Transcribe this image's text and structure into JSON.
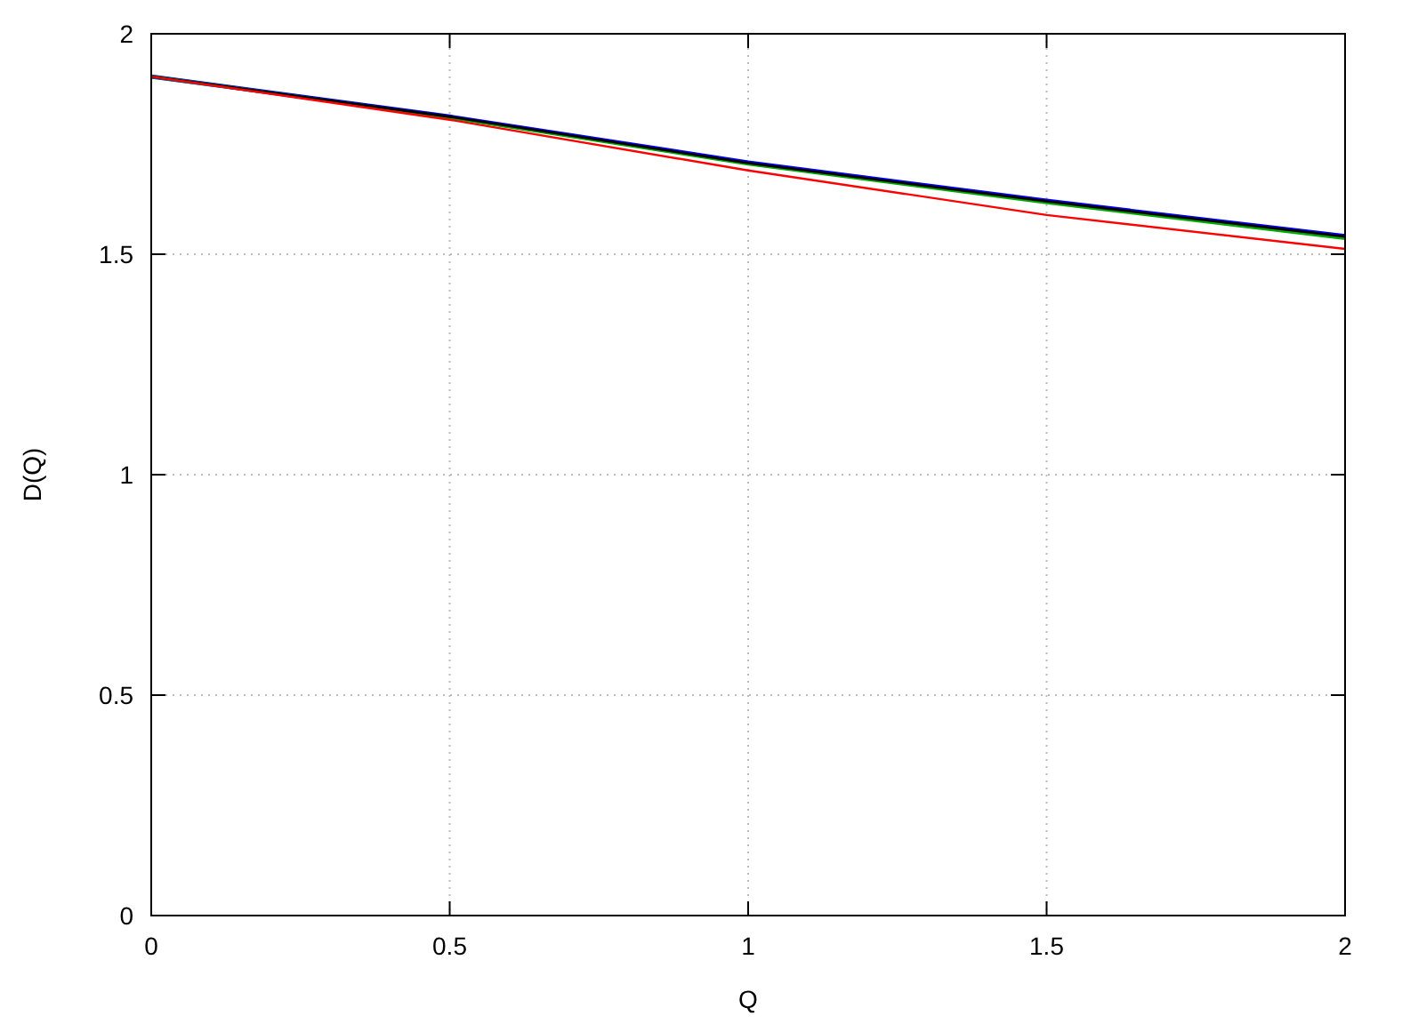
{
  "chart_data": {
    "type": "line",
    "xlabel": "Q",
    "ylabel": "D(Q)",
    "x": [
      0,
      0.5,
      1,
      1.5,
      2
    ],
    "series": [
      {
        "color": "#0000ff",
        "values": [
          1.903,
          1.812,
          1.708,
          1.621,
          1.541
        ]
      },
      {
        "color": "#00aa00",
        "values": [
          1.903,
          1.81,
          1.705,
          1.617,
          1.536
        ]
      },
      {
        "color": "#000000",
        "values": [
          1.903,
          1.812,
          1.707,
          1.62,
          1.54
        ]
      },
      {
        "color": "#ff0000",
        "values": [
          1.903,
          1.805,
          1.69,
          1.589,
          1.512
        ]
      }
    ],
    "xlim": [
      0,
      2
    ],
    "ylim": [
      0,
      2
    ],
    "xticks": [
      0,
      0.5,
      1,
      1.5,
      2
    ],
    "yticks": [
      0,
      0.5,
      1,
      1.5,
      2
    ],
    "grid": true,
    "line_style": "solid",
    "marker": "none"
  }
}
